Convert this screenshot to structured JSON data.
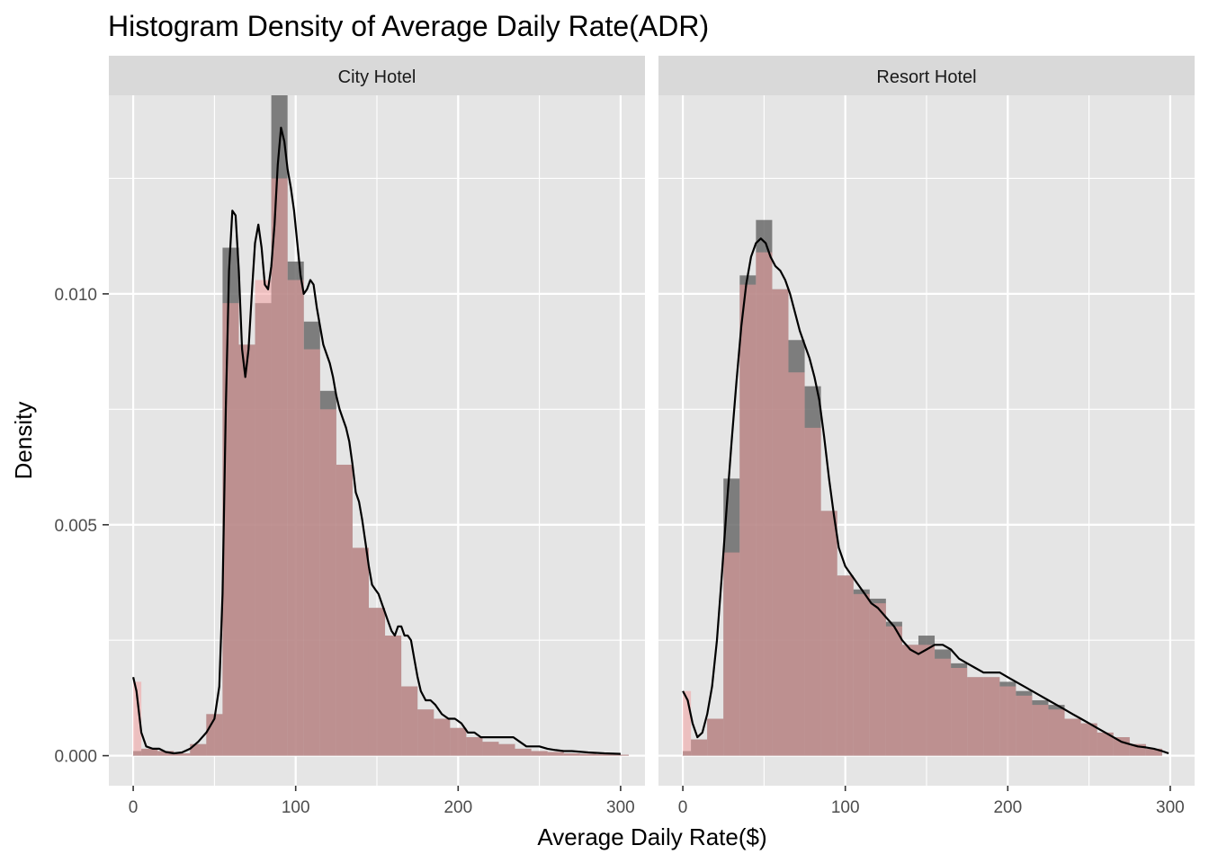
{
  "chart_data": {
    "type": "histogram",
    "title": "Histogram Density of Average Daily Rate(ADR)",
    "xlabel": "Average Daily Rate($)",
    "ylabel": "Density",
    "xlim": [
      -15,
      315
    ],
    "ylim": [
      -0.00065,
      0.0143
    ],
    "x_ticks": [
      0,
      100,
      200,
      300
    ],
    "x_tick_labels": [
      "0",
      "100",
      "200",
      "300"
    ],
    "y_ticks": [
      0,
      0.005,
      0.01
    ],
    "y_tick_labels": [
      "0.000",
      "0.005",
      "0.010"
    ],
    "grid": true,
    "bin_width": 10,
    "colors": {
      "panel_bg": "#e5e5e5",
      "strip_bg": "#d9d9d9",
      "grid": "#ffffff",
      "bar_gray": "#6b6b6b",
      "bar_pink": "#f2a0a0",
      "density_line": "#000000",
      "tick_text": "#4d4d4d"
    },
    "panels": [
      {
        "name": "City Hotel",
        "bins_left": [
          0,
          5,
          15,
          25,
          35,
          45,
          55,
          65,
          75,
          85,
          95,
          105,
          115,
          125,
          135,
          145,
          155,
          165,
          175,
          185,
          195,
          205,
          215,
          225,
          235,
          245,
          255,
          265,
          275,
          285,
          295
        ],
        "hist_gray": [
          0.0001,
          0.00015,
          0.0001,
          5e-05,
          0.00025,
          0.0009,
          0.011,
          0.0089,
          0.0098,
          0.0143,
          0.0107,
          0.0094,
          0.0079,
          0.0063,
          0.0045,
          0.0032,
          0.0026,
          0.0015,
          0.001,
          0.0008,
          0.0006,
          0.0004,
          0.0003,
          0.00025,
          0.00015,
          0.0001,
          8e-05,
          5e-05,
          4e-05,
          3e-05,
          2e-05
        ],
        "hist_pink": [
          0.0016,
          0.00015,
          0.0001,
          5e-05,
          0.00025,
          0.0009,
          0.0098,
          0.0089,
          0.0103,
          0.0125,
          0.0103,
          0.0088,
          0.0075,
          0.0063,
          0.0045,
          0.0032,
          0.0026,
          0.0015,
          0.001,
          0.0008,
          0.0006,
          0.0004,
          0.0003,
          0.00025,
          0.00015,
          0.0001,
          8e-05,
          5e-05,
          4e-05,
          3e-05,
          2e-05
        ],
        "density": [
          [
            0,
            0.0017
          ],
          [
            2,
            0.0014
          ],
          [
            5,
            0.0005
          ],
          [
            8,
            0.0002
          ],
          [
            12,
            0.00015
          ],
          [
            16,
            0.00015
          ],
          [
            20,
            8e-05
          ],
          [
            25,
            5e-05
          ],
          [
            30,
            7e-05
          ],
          [
            35,
            0.00015
          ],
          [
            40,
            0.0003
          ],
          [
            45,
            0.0005
          ],
          [
            50,
            0.0008
          ],
          [
            53,
            0.0015
          ],
          [
            55,
            0.0035
          ],
          [
            57,
            0.0075
          ],
          [
            59,
            0.0105
          ],
          [
            61,
            0.0118
          ],
          [
            63,
            0.0117
          ],
          [
            65,
            0.0105
          ],
          [
            67,
            0.0088
          ],
          [
            69,
            0.0082
          ],
          [
            71,
            0.0088
          ],
          [
            73,
            0.01
          ],
          [
            75,
            0.0111
          ],
          [
            77,
            0.0115
          ],
          [
            79,
            0.011
          ],
          [
            81,
            0.0102
          ],
          [
            83,
            0.0101
          ],
          [
            85,
            0.0106
          ],
          [
            87,
            0.0115
          ],
          [
            89,
            0.0128
          ],
          [
            91,
            0.0136
          ],
          [
            93,
            0.0133
          ],
          [
            95,
            0.0127
          ],
          [
            97,
            0.0123
          ],
          [
            99,
            0.0118
          ],
          [
            101,
            0.0111
          ],
          [
            103,
            0.0104
          ],
          [
            105,
            0.01
          ],
          [
            107,
            0.0101
          ],
          [
            109,
            0.0103
          ],
          [
            111,
            0.0102
          ],
          [
            113,
            0.0097
          ],
          [
            115,
            0.0093
          ],
          [
            117,
            0.0089
          ],
          [
            119,
            0.0087
          ],
          [
            121,
            0.0085
          ],
          [
            123,
            0.0082
          ],
          [
            125,
            0.0078
          ],
          [
            127,
            0.0075
          ],
          [
            129,
            0.0073
          ],
          [
            131,
            0.0071
          ],
          [
            133,
            0.0068
          ],
          [
            135,
            0.0063
          ],
          [
            137,
            0.0057
          ],
          [
            139,
            0.0055
          ],
          [
            141,
            0.0051
          ],
          [
            143,
            0.0046
          ],
          [
            145,
            0.0041
          ],
          [
            147,
            0.0037
          ],
          [
            149,
            0.0036
          ],
          [
            151,
            0.0035
          ],
          [
            153,
            0.0033
          ],
          [
            155,
            0.0031
          ],
          [
            157,
            0.0029
          ],
          [
            159,
            0.0027
          ],
          [
            161,
            0.0026
          ],
          [
            163,
            0.0028
          ],
          [
            165,
            0.0028
          ],
          [
            167,
            0.0026
          ],
          [
            169,
            0.0026
          ],
          [
            171,
            0.0025
          ],
          [
            173,
            0.0021
          ],
          [
            175,
            0.0017
          ],
          [
            177,
            0.0014
          ],
          [
            180,
            0.0012
          ],
          [
            183,
            0.0012
          ],
          [
            186,
            0.0011
          ],
          [
            190,
            0.0009
          ],
          [
            194,
            0.0008
          ],
          [
            198,
            0.0008
          ],
          [
            202,
            0.0007
          ],
          [
            206,
            0.0005
          ],
          [
            210,
            0.0005
          ],
          [
            214,
            0.0004
          ],
          [
            218,
            0.0004
          ],
          [
            222,
            0.0004
          ],
          [
            226,
            0.0004
          ],
          [
            230,
            0.0004
          ],
          [
            234,
            0.0004
          ],
          [
            238,
            0.0003
          ],
          [
            242,
            0.0002
          ],
          [
            246,
            0.0002
          ],
          [
            250,
            0.0002
          ],
          [
            255,
            0.00015
          ],
          [
            260,
            0.00012
          ],
          [
            265,
            0.0001
          ],
          [
            270,
            0.0001
          ],
          [
            280,
            7e-05
          ],
          [
            290,
            5e-05
          ],
          [
            300,
            4e-05
          ]
        ]
      },
      {
        "name": "Resort Hotel",
        "bins_left": [
          0,
          5,
          15,
          25,
          35,
          45,
          55,
          65,
          75,
          85,
          95,
          105,
          115,
          125,
          135,
          145,
          155,
          165,
          175,
          185,
          195,
          205,
          215,
          225,
          235,
          245,
          255,
          265,
          275,
          285
        ],
        "hist_gray": [
          0.0001,
          0.00035,
          0.0008,
          0.006,
          0.0104,
          0.0116,
          0.0101,
          0.009,
          0.008,
          0.0053,
          0.0039,
          0.0036,
          0.0034,
          0.0029,
          0.0024,
          0.0026,
          0.0023,
          0.002,
          0.0017,
          0.0017,
          0.0016,
          0.0014,
          0.0012,
          0.0011,
          0.0008,
          0.0007,
          0.0005,
          0.0004,
          0.00025,
          0.00015
        ],
        "hist_pink": [
          0.0014,
          0.00035,
          0.0008,
          0.0044,
          0.0102,
          0.0109,
          0.0101,
          0.0083,
          0.0071,
          0.0053,
          0.0039,
          0.0035,
          0.0033,
          0.0028,
          0.0024,
          0.0024,
          0.0021,
          0.0019,
          0.0017,
          0.0017,
          0.0015,
          0.0013,
          0.0011,
          0.001,
          0.0008,
          0.0007,
          0.0005,
          0.0004,
          0.00025,
          0.00015
        ],
        "density": [
          [
            0,
            0.0014
          ],
          [
            3,
            0.0012
          ],
          [
            6,
            0.0007
          ],
          [
            9,
            0.0004
          ],
          [
            12,
            0.0005
          ],
          [
            15,
            0.0009
          ],
          [
            18,
            0.0015
          ],
          [
            21,
            0.0025
          ],
          [
            24,
            0.0039
          ],
          [
            27,
            0.0054
          ],
          [
            30,
            0.0068
          ],
          [
            33,
            0.0081
          ],
          [
            36,
            0.0093
          ],
          [
            39,
            0.0102
          ],
          [
            42,
            0.0108
          ],
          [
            45,
            0.0111
          ],
          [
            48,
            0.0112
          ],
          [
            51,
            0.0111
          ],
          [
            54,
            0.0108
          ],
          [
            57,
            0.0106
          ],
          [
            60,
            0.0105
          ],
          [
            63,
            0.0103
          ],
          [
            66,
            0.01
          ],
          [
            69,
            0.0096
          ],
          [
            72,
            0.0092
          ],
          [
            75,
            0.0089
          ],
          [
            78,
            0.0086
          ],
          [
            81,
            0.0082
          ],
          [
            84,
            0.0077
          ],
          [
            87,
            0.0069
          ],
          [
            90,
            0.006
          ],
          [
            93,
            0.0052
          ],
          [
            96,
            0.0045
          ],
          [
            100,
            0.0041
          ],
          [
            104,
            0.0039
          ],
          [
            108,
            0.0037
          ],
          [
            112,
            0.0035
          ],
          [
            116,
            0.0033
          ],
          [
            120,
            0.0032
          ],
          [
            125,
            0.003
          ],
          [
            130,
            0.0028
          ],
          [
            135,
            0.0025
          ],
          [
            140,
            0.0023
          ],
          [
            145,
            0.0022
          ],
          [
            150,
            0.0023
          ],
          [
            155,
            0.0024
          ],
          [
            160,
            0.0024
          ],
          [
            165,
            0.0023
          ],
          [
            170,
            0.0021
          ],
          [
            175,
            0.002
          ],
          [
            180,
            0.0019
          ],
          [
            185,
            0.0018
          ],
          [
            190,
            0.0018
          ],
          [
            195,
            0.0018
          ],
          [
            200,
            0.0017
          ],
          [
            205,
            0.0016
          ],
          [
            210,
            0.0015
          ],
          [
            215,
            0.0014
          ],
          [
            220,
            0.0013
          ],
          [
            225,
            0.0012
          ],
          [
            230,
            0.0011
          ],
          [
            235,
            0.001
          ],
          [
            240,
            0.0009
          ],
          [
            245,
            0.0008
          ],
          [
            250,
            0.0007
          ],
          [
            255,
            0.0006
          ],
          [
            260,
            0.0005
          ],
          [
            265,
            0.0004
          ],
          [
            270,
            0.0003
          ],
          [
            275,
            0.00025
          ],
          [
            280,
            0.0002
          ],
          [
            285,
            0.00018
          ],
          [
            290,
            0.00015
          ],
          [
            295,
            0.0001
          ],
          [
            299,
            5e-05
          ]
        ]
      }
    ]
  }
}
